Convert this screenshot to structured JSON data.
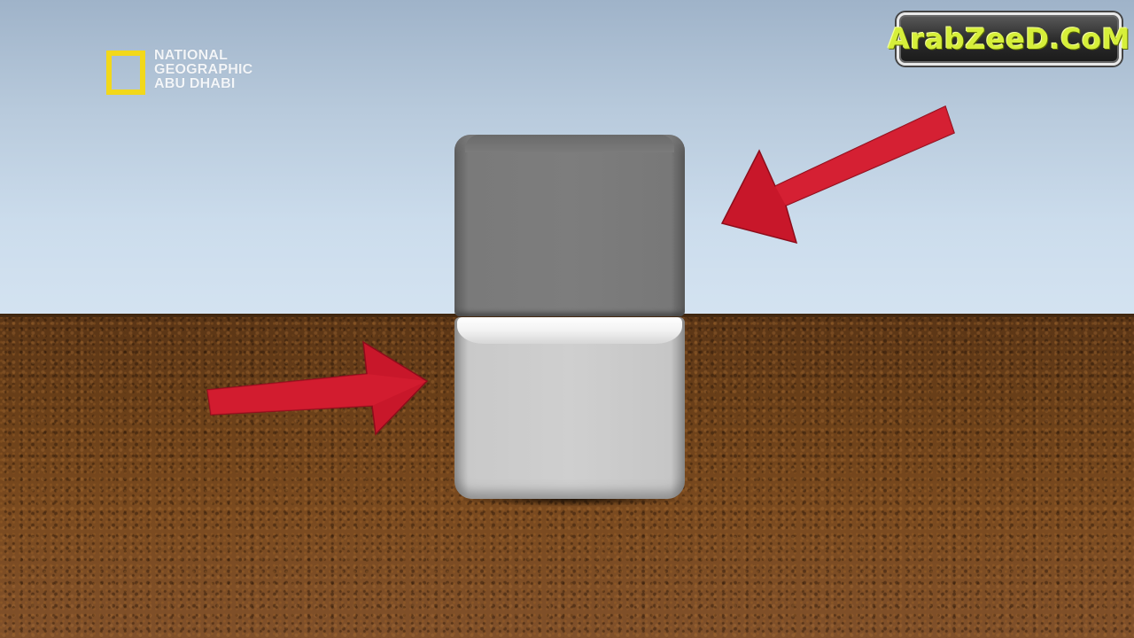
{
  "logo": {
    "line1": "NATIONAL",
    "line2": "GEOGRAPHIC",
    "line3": "ABU DHABI",
    "frame_color": "#f2d81a"
  },
  "watermark": {
    "text": "ArabZeeD.CoM",
    "text_color": "#d6ef3a"
  },
  "scene": {
    "top_box_color": "#7b7b7b",
    "bottom_box_color": "#cccccc",
    "arrow_color": "#d0182a"
  }
}
